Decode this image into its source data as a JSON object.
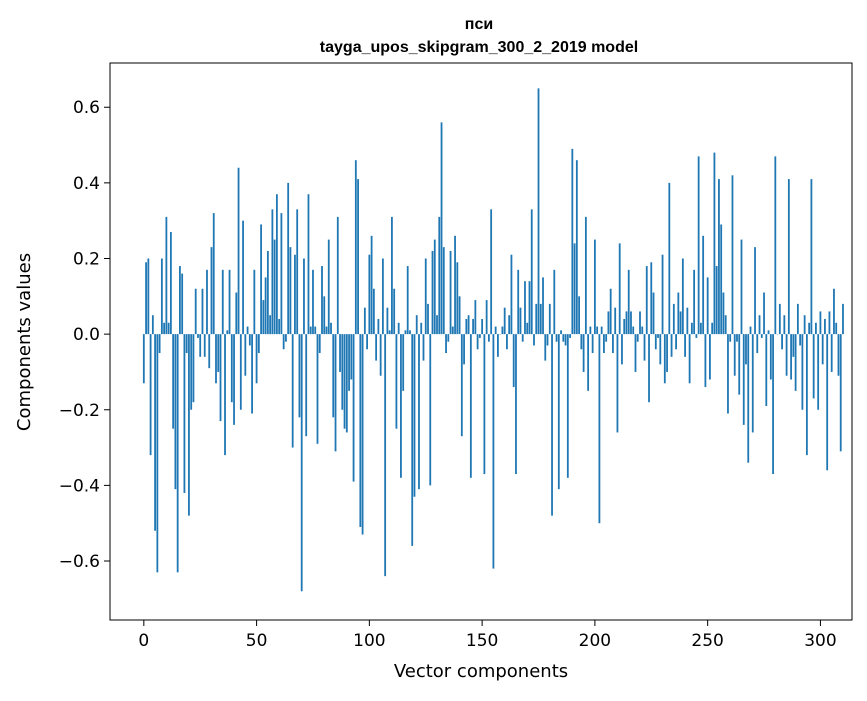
{
  "chart_data": {
    "type": "bar",
    "title_line1": "пси",
    "title_line2": "tayga_upos_skipgram_300_2_2019 model",
    "xlabel": "Vector components",
    "ylabel": "Components values",
    "xlim": [
      -15,
      314
    ],
    "ylim": [
      -0.756,
      0.717
    ],
    "xticks": [
      0,
      50,
      100,
      150,
      200,
      250,
      300
    ],
    "xtick_labels": [
      "0",
      "50",
      "100",
      "150",
      "200",
      "250",
      "300"
    ],
    "yticks": [
      -0.6,
      -0.4,
      -0.2,
      0.0,
      0.2,
      0.4,
      0.6
    ],
    "ytick_labels": [
      "−0.6",
      "−0.4",
      "−0.2",
      "0.0",
      "0.2",
      "0.4",
      "0.6"
    ],
    "bar_color": "#1f77b4",
    "grid": false,
    "values": [
      -0.13,
      0.19,
      0.2,
      -0.32,
      0.05,
      -0.52,
      -0.63,
      -0.05,
      0.2,
      0.03,
      0.31,
      0.03,
      0.27,
      -0.25,
      -0.41,
      -0.63,
      0.18,
      0.16,
      -0.42,
      -0.05,
      -0.48,
      -0.2,
      -0.18,
      0.12,
      -0.01,
      -0.06,
      0.12,
      -0.06,
      0.17,
      -0.09,
      0.23,
      0.32,
      -0.13,
      -0.1,
      -0.23,
      0.17,
      -0.32,
      0.01,
      0.17,
      -0.18,
      -0.24,
      0.11,
      0.44,
      -0.2,
      0.3,
      -0.11,
      0.02,
      -0.03,
      -0.21,
      0.17,
      -0.13,
      -0.05,
      0.29,
      0.09,
      0.15,
      0.22,
      0.05,
      0.33,
      0.25,
      0.37,
      0.04,
      0.32,
      -0.04,
      -0.02,
      0.4,
      0.23,
      -0.3,
      0.21,
      0.33,
      -0.22,
      -0.68,
      0.2,
      -0.27,
      0.37,
      0.02,
      0.17,
      0.02,
      -0.29,
      -0.05,
      0.18,
      0.1,
      0.02,
      0.25,
      0.03,
      -0.22,
      -0.31,
      0.31,
      -0.1,
      -0.2,
      -0.25,
      -0.26,
      -0.15,
      -0.12,
      -0.39,
      0.46,
      0.41,
      -0.51,
      -0.53,
      0.07,
      -0.04,
      0.21,
      0.26,
      0.12,
      -0.07,
      0.04,
      -0.11,
      0.2,
      -0.64,
      0.07,
      0.01,
      0.31,
      0.12,
      -0.25,
      0.03,
      -0.38,
      -0.15,
      0.01,
      0.18,
      0.01,
      -0.56,
      -0.43,
      0.05,
      -0.41,
      0.03,
      -0.07,
      0.2,
      0.08,
      -0.4,
      0.22,
      0.25,
      0.05,
      0.31,
      0.56,
      0.23,
      -0.05,
      -0.02,
      0.22,
      0.02,
      0.26,
      0.19,
      0.1,
      -0.27,
      -0.08,
      0.04,
      0.05,
      -0.38,
      0.04,
      0.09,
      -0.04,
      -0.01,
      0.04,
      -0.37,
      0.09,
      -0.02,
      0.33,
      -0.62,
      0.02,
      -0.06,
      0.0,
      0.02,
      0.07,
      -0.04,
      0.05,
      0.21,
      -0.14,
      -0.37,
      0.17,
      0.07,
      -0.02,
      0.14,
      0.03,
      0.14,
      0.33,
      -0.03,
      0.08,
      0.65,
      0.08,
      0.15,
      -0.07,
      -0.03,
      0.08,
      -0.48,
      0.17,
      -0.02,
      -0.41,
      0.01,
      -0.02,
      -0.03,
      -0.38,
      -0.01,
      0.49,
      0.24,
      0.46,
      0.1,
      -0.04,
      -0.1,
      0.31,
      -0.15,
      0.02,
      -0.05,
      0.25,
      0.02,
      -0.5,
      0.02,
      -0.05,
      -0.02,
      0.06,
      0.12,
      -0.05,
      0.07,
      -0.26,
      0.24,
      -0.08,
      0.04,
      0.06,
      0.17,
      0.06,
      0.02,
      -0.1,
      -0.02,
      0.06,
      0.02,
      -0.07,
      0.18,
      -0.18,
      0.19,
      0.11,
      -0.04,
      -0.01,
      -0.08,
      0.21,
      -0.13,
      -0.1,
      0.4,
      -0.06,
      0.08,
      -0.04,
      0.11,
      0.06,
      0.2,
      -0.06,
      0.07,
      -0.13,
      0.03,
      0.17,
      -0.01,
      0.47,
      0.03,
      0.26,
      -0.14,
      0.15,
      -0.12,
      0.03,
      0.48,
      0.18,
      0.41,
      0.29,
      0.11,
      0.05,
      -0.21,
      -0.02,
      0.42,
      -0.11,
      -0.02,
      -0.16,
      0.25,
      -0.24,
      -0.08,
      -0.34,
      0.02,
      -0.26,
      0.23,
      -0.05,
      0.05,
      -0.01,
      0.11,
      -0.19,
      0.01,
      -0.12,
      -0.37,
      0.47,
      0.0,
      0.08,
      -0.04,
      0.05,
      -0.11,
      0.41,
      -0.12,
      -0.06,
      -0.15,
      0.08,
      -0.03,
      -0.2,
      0.05,
      -0.32,
      0.03,
      0.41,
      -0.17,
      0.03,
      -0.2,
      0.06,
      -0.08,
      0.04,
      -0.36,
      0.06,
      -0.1,
      0.12,
      0.03,
      -0.11,
      -0.31,
      0.08
    ]
  }
}
